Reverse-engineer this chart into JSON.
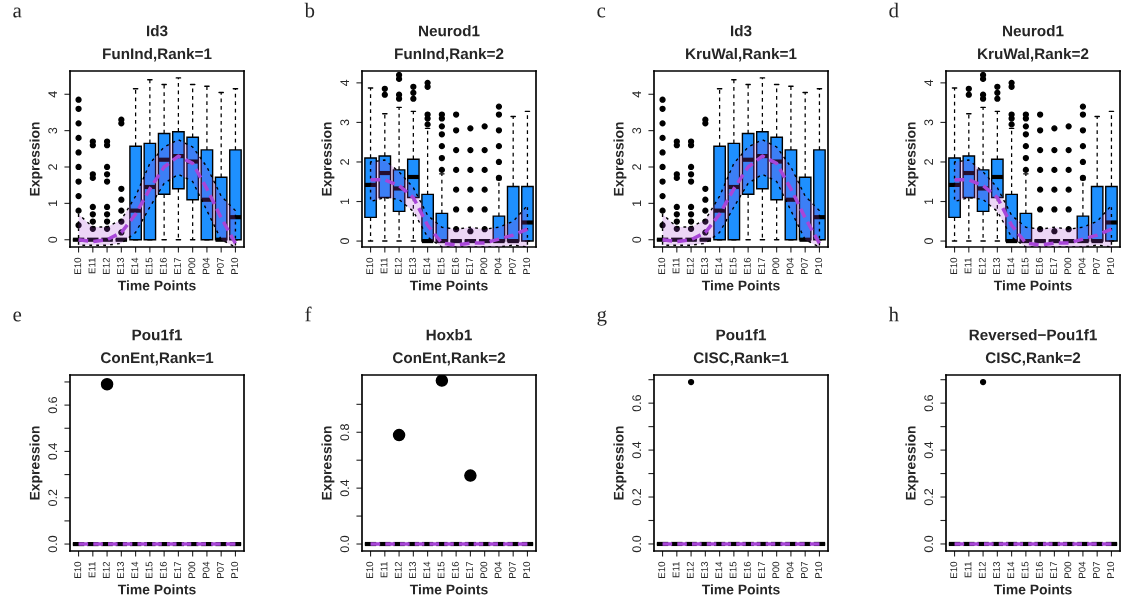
{
  "chart_data": [
    {
      "type": "box",
      "title": "Id3",
      "subtitle": "FunInd,Rank=1",
      "xlabel": "Time Points",
      "ylabel": "Expression",
      "annotations": [
        "a"
      ],
      "categories": [
        "E10",
        "E11",
        "E12",
        "E13",
        "E14",
        "E15",
        "E16",
        "E17",
        "P00",
        "P04",
        "P07",
        "P10"
      ],
      "ylim": [
        -0.2,
        4.64
      ],
      "yticks": [
        0,
        1,
        2,
        3,
        4
      ],
      "series": [
        {
          "type": "box",
          "colors": [
            "#000000",
            "#000000",
            "#000000",
            "#000000",
            "#1e90ff",
            "#1e90ff",
            "#1e90ff",
            "#1e90ff",
            "#1e90ff",
            "#1e90ff",
            "#1e90ff",
            "#1e90ff"
          ],
          "boxes": [
            {
              "low": 0,
              "q1": 0,
              "median": 0,
              "q3": 0,
              "high": 0,
              "outliers": [
                0.4,
                0.8,
                1.2,
                1.6,
                2.0,
                2.4,
                2.8,
                3.2,
                3.6,
                3.85
              ]
            },
            {
              "low": 0,
              "q1": 0,
              "median": 0,
              "q3": 0,
              "high": 0,
              "outliers": [
                0.3,
                0.5,
                0.7,
                0.9,
                1.7,
                1.8,
                2.6,
                2.7
              ]
            },
            {
              "low": 0,
              "q1": 0,
              "median": 0,
              "q3": 0,
              "high": 0,
              "outliers": [
                0.3,
                0.5,
                0.7,
                0.9,
                1.6,
                1.8,
                2.0,
                2.6,
                2.7
              ]
            },
            {
              "low": 0,
              "q1": 0,
              "median": 0,
              "q3": 0,
              "high": 0,
              "outliers": [
                0.2,
                0.5,
                0.8,
                1.1,
                1.4,
                3.2,
                3.3
              ]
            },
            {
              "low": 0,
              "q1": 0,
              "median": 0.8,
              "q3": 2.57,
              "high": 4.15
            },
            {
              "low": 0,
              "q1": 0,
              "median": 1.45,
              "q3": 2.65,
              "high": 4.4
            },
            {
              "low": 0,
              "q1": 1.25,
              "median": 2.2,
              "q3": 2.92,
              "high": 4.27
            },
            {
              "low": 0,
              "q1": 1.4,
              "median": 2.3,
              "q3": 2.97,
              "high": 4.45
            },
            {
              "low": 0,
              "q1": 1.1,
              "median": 2.15,
              "q3": 2.82,
              "high": 4.27
            },
            {
              "low": 0,
              "q1": 0,
              "median": 1.1,
              "q3": 2.47,
              "high": 4.22
            },
            {
              "low": 0,
              "q1": 0,
              "median": 0,
              "q3": 1.72,
              "high": 4.05
            },
            {
              "low": 0,
              "q1": 0,
              "median": 0.62,
              "q3": 2.47,
              "high": 4.15
            }
          ]
        },
        {
          "type": "line",
          "color": "#a846d8",
          "line_style": "dashed",
          "values": [
            0.0,
            -0.05,
            0.0,
            0.2,
            0.7,
            1.4,
            2.0,
            2.3,
            2.1,
            1.4,
            0.6,
            -0.1
          ],
          "lower": [
            -0.15,
            -0.15,
            -0.15,
            -0.1,
            0.2,
            0.9,
            1.55,
            1.8,
            1.6,
            0.8,
            0.0,
            -0.2
          ],
          "upper": [
            0.7,
            0.35,
            0.35,
            0.55,
            1.2,
            2.1,
            2.55,
            2.75,
            2.55,
            2.0,
            1.2,
            0.8
          ]
        }
      ]
    },
    {
      "type": "box",
      "title": "Neurod1",
      "subtitle": "FunInd,Rank=2",
      "xlabel": "Time Points",
      "ylabel": "Expression",
      "annotations": [
        "b"
      ],
      "categories": [
        "E10",
        "E11",
        "E12",
        "E13",
        "E14",
        "E15",
        "E16",
        "E17",
        "P00",
        "P04",
        "P07",
        "P10"
      ],
      "ylim": [
        -0.15,
        4.3
      ],
      "yticks": [
        0,
        1,
        2,
        3,
        4
      ],
      "series": [
        {
          "type": "box",
          "colors": [
            "#1e90ff",
            "#1e90ff",
            "#1e90ff",
            "#1e90ff",
            "#1e90ff",
            "#1e90ff",
            "#000000",
            "#000000",
            "#000000",
            "#1e90ff",
            "#1e90ff",
            "#1e90ff"
          ],
          "boxes": [
            {
              "low": 0,
              "q1": 0.6,
              "median": 1.42,
              "q3": 2.1,
              "high": 3.87
            },
            {
              "low": 0,
              "q1": 1.1,
              "median": 1.72,
              "q3": 2.15,
              "high": 3.22,
              "outliers": [
                3.7,
                3.85
              ]
            },
            {
              "low": 0,
              "q1": 0.75,
              "median": 1.33,
              "q3": 1.8,
              "high": 3.38,
              "outliers": [
                3.6,
                3.7,
                4.1,
                4.2
              ]
            },
            {
              "low": 0,
              "q1": 1.1,
              "median": 1.62,
              "q3": 2.07,
              "high": 3.28,
              "outliers": [
                3.6,
                3.75,
                3.9
              ]
            },
            {
              "low": 0,
              "q1": 0,
              "median": 0,
              "q3": 1.18,
              "high": 2.85,
              "outliers": [
                2.95,
                3.1,
                3.2,
                3.9,
                4.0
              ]
            },
            {
              "low": 0,
              "q1": 0,
              "median": 0,
              "q3": 0.7,
              "high": 1.7,
              "outliers": [
                1.8,
                2.1,
                2.4,
                2.7,
                2.9,
                3.1,
                3.2
              ]
            },
            {
              "low": 0,
              "q1": 0,
              "median": 0,
              "q3": 0,
              "high": 0,
              "outliers": [
                0.3,
                0.8,
                1.3,
                1.8,
                2.3,
                2.8,
                3.2
              ]
            },
            {
              "low": 0,
              "q1": 0,
              "median": 0,
              "q3": 0,
              "high": 0,
              "outliers": [
                0.25,
                0.8,
                1.3,
                1.8,
                2.3,
                2.85
              ]
            },
            {
              "low": 0,
              "q1": 0,
              "median": 0,
              "q3": 0,
              "high": 0,
              "outliers": [
                0.3,
                0.8,
                1.3,
                1.8,
                2.3,
                2.9
              ]
            },
            {
              "low": 0,
              "q1": 0,
              "median": 0,
              "q3": 0.63,
              "high": 1.55,
              "outliers": [
                1.6,
                2.0,
                2.4,
                2.8,
                3.2,
                3.4
              ]
            },
            {
              "low": 0,
              "q1": 0,
              "median": 0,
              "q3": 1.38,
              "high": 3.15
            },
            {
              "low": 0,
              "q1": 0,
              "median": 0.47,
              "q3": 1.38,
              "high": 3.28
            }
          ]
        },
        {
          "type": "line",
          "color": "#a846d8",
          "line_style": "dashed",
          "values": [
            1.55,
            1.55,
            1.4,
            1.1,
            0.4,
            -0.05,
            -0.1,
            -0.05,
            -0.05,
            0.05,
            0.15,
            0.3
          ],
          "lower": [
            1.0,
            1.1,
            1.05,
            0.75,
            0.1,
            -0.15,
            -0.15,
            -0.15,
            -0.15,
            -0.15,
            -0.1,
            -0.15
          ],
          "upper": [
            2.0,
            2.05,
            1.75,
            1.35,
            0.65,
            0.35,
            0.3,
            0.35,
            0.3,
            0.35,
            0.5,
            0.9
          ]
        }
      ]
    },
    {
      "type": "box",
      "title": "Id3",
      "subtitle": "KruWal,Rank=1",
      "xlabel": "Time Points",
      "ylabel": "Expression",
      "annotations": [
        "c"
      ],
      "categories": [
        "E10",
        "E11",
        "E12",
        "E13",
        "E14",
        "E15",
        "E16",
        "E17",
        "P00",
        "P04",
        "P07",
        "P10"
      ],
      "ylim": [
        -0.2,
        4.64
      ],
      "yticks": [
        0,
        1,
        2,
        3,
        4
      ],
      "series": [
        {
          "type": "box",
          "colors": [
            "#000000",
            "#000000",
            "#000000",
            "#000000",
            "#1e90ff",
            "#1e90ff",
            "#1e90ff",
            "#1e90ff",
            "#1e90ff",
            "#1e90ff",
            "#1e90ff",
            "#1e90ff"
          ],
          "boxes": [
            {
              "low": 0,
              "q1": 0,
              "median": 0,
              "q3": 0,
              "high": 0,
              "outliers": [
                0.4,
                0.8,
                1.2,
                1.6,
                2.0,
                2.4,
                2.8,
                3.2,
                3.6,
                3.85
              ]
            },
            {
              "low": 0,
              "q1": 0,
              "median": 0,
              "q3": 0,
              "high": 0,
              "outliers": [
                0.3,
                0.5,
                0.7,
                0.9,
                1.7,
                1.8,
                2.6,
                2.7
              ]
            },
            {
              "low": 0,
              "q1": 0,
              "median": 0,
              "q3": 0,
              "high": 0,
              "outliers": [
                0.3,
                0.5,
                0.7,
                0.9,
                1.6,
                1.8,
                2.0,
                2.6,
                2.7
              ]
            },
            {
              "low": 0,
              "q1": 0,
              "median": 0,
              "q3": 0,
              "high": 0,
              "outliers": [
                0.2,
                0.5,
                0.8,
                1.1,
                1.4,
                3.2,
                3.3
              ]
            },
            {
              "low": 0,
              "q1": 0,
              "median": 0.8,
              "q3": 2.57,
              "high": 4.15
            },
            {
              "low": 0,
              "q1": 0,
              "median": 1.45,
              "q3": 2.65,
              "high": 4.4
            },
            {
              "low": 0,
              "q1": 1.25,
              "median": 2.2,
              "q3": 2.92,
              "high": 4.27
            },
            {
              "low": 0,
              "q1": 1.4,
              "median": 2.3,
              "q3": 2.97,
              "high": 4.45
            },
            {
              "low": 0,
              "q1": 1.1,
              "median": 2.15,
              "q3": 2.82,
              "high": 4.27
            },
            {
              "low": 0,
              "q1": 0,
              "median": 1.1,
              "q3": 2.47,
              "high": 4.22
            },
            {
              "low": 0,
              "q1": 0,
              "median": 0,
              "q3": 1.72,
              "high": 4.05
            },
            {
              "low": 0,
              "q1": 0,
              "median": 0.62,
              "q3": 2.47,
              "high": 4.15
            }
          ]
        },
        {
          "type": "line",
          "color": "#a846d8",
          "line_style": "dashed",
          "values": [
            0.0,
            -0.05,
            0.0,
            0.2,
            0.7,
            1.4,
            2.0,
            2.3,
            2.1,
            1.4,
            0.6,
            -0.1
          ],
          "lower": [
            -0.15,
            -0.15,
            -0.15,
            -0.1,
            0.2,
            0.9,
            1.55,
            1.8,
            1.6,
            0.8,
            0.0,
            -0.2
          ],
          "upper": [
            0.7,
            0.35,
            0.35,
            0.55,
            1.2,
            2.1,
            2.55,
            2.75,
            2.55,
            2.0,
            1.2,
            0.8
          ]
        }
      ]
    },
    {
      "type": "box",
      "title": "Neurod1",
      "subtitle": "KruWal,Rank=2",
      "xlabel": "Time Points",
      "ylabel": "Expression",
      "annotations": [
        "d"
      ],
      "categories": [
        "E10",
        "E11",
        "E12",
        "E13",
        "E14",
        "E15",
        "E16",
        "E17",
        "P00",
        "P04",
        "P07",
        "P10"
      ],
      "ylim": [
        -0.15,
        4.3
      ],
      "yticks": [
        0,
        1,
        2,
        3,
        4
      ],
      "series": [
        {
          "type": "box",
          "colors": [
            "#1e90ff",
            "#1e90ff",
            "#1e90ff",
            "#1e90ff",
            "#1e90ff",
            "#1e90ff",
            "#000000",
            "#000000",
            "#000000",
            "#1e90ff",
            "#1e90ff",
            "#1e90ff"
          ],
          "boxes": [
            {
              "low": 0,
              "q1": 0.6,
              "median": 1.42,
              "q3": 2.1,
              "high": 3.87
            },
            {
              "low": 0,
              "q1": 1.1,
              "median": 1.72,
              "q3": 2.15,
              "high": 3.22,
              "outliers": [
                3.7,
                3.85
              ]
            },
            {
              "low": 0,
              "q1": 0.75,
              "median": 1.33,
              "q3": 1.8,
              "high": 3.38,
              "outliers": [
                3.6,
                3.7,
                4.1,
                4.2
              ]
            },
            {
              "low": 0,
              "q1": 1.1,
              "median": 1.62,
              "q3": 2.07,
              "high": 3.28,
              "outliers": [
                3.6,
                3.75,
                3.9
              ]
            },
            {
              "low": 0,
              "q1": 0,
              "median": 0,
              "q3": 1.18,
              "high": 2.85,
              "outliers": [
                2.95,
                3.1,
                3.2,
                3.9,
                4.0
              ]
            },
            {
              "low": 0,
              "q1": 0,
              "median": 0,
              "q3": 0.7,
              "high": 1.7,
              "outliers": [
                1.8,
                2.1,
                2.4,
                2.7,
                2.9,
                3.1,
                3.2
              ]
            },
            {
              "low": 0,
              "q1": 0,
              "median": 0,
              "q3": 0,
              "high": 0,
              "outliers": [
                0.3,
                0.8,
                1.3,
                1.8,
                2.3,
                2.8,
                3.2
              ]
            },
            {
              "low": 0,
              "q1": 0,
              "median": 0,
              "q3": 0,
              "high": 0,
              "outliers": [
                0.25,
                0.8,
                1.3,
                1.8,
                2.3,
                2.85
              ]
            },
            {
              "low": 0,
              "q1": 0,
              "median": 0,
              "q3": 0,
              "high": 0,
              "outliers": [
                0.3,
                0.8,
                1.3,
                1.8,
                2.3,
                2.9
              ]
            },
            {
              "low": 0,
              "q1": 0,
              "median": 0,
              "q3": 0.63,
              "high": 1.55,
              "outliers": [
                1.6,
                2.0,
                2.4,
                2.8,
                3.2,
                3.4
              ]
            },
            {
              "low": 0,
              "q1": 0,
              "median": 0,
              "q3": 1.38,
              "high": 3.15
            },
            {
              "low": 0,
              "q1": 0,
              "median": 0.47,
              "q3": 1.38,
              "high": 3.28
            }
          ]
        },
        {
          "type": "line",
          "color": "#a846d8",
          "line_style": "dashed",
          "values": [
            1.55,
            1.55,
            1.4,
            1.1,
            0.4,
            -0.05,
            -0.1,
            -0.05,
            -0.05,
            0.05,
            0.15,
            0.3
          ],
          "lower": [
            1.0,
            1.1,
            1.05,
            0.75,
            0.1,
            -0.15,
            -0.15,
            -0.15,
            -0.15,
            -0.15,
            -0.1,
            -0.15
          ],
          "upper": [
            2.0,
            2.05,
            1.75,
            1.35,
            0.65,
            0.35,
            0.3,
            0.35,
            0.3,
            0.35,
            0.5,
            0.9
          ]
        }
      ]
    },
    {
      "type": "box",
      "title": "Pou1f1",
      "subtitle": "ConEnt,Rank=1",
      "xlabel": "Time Points",
      "ylabel": "Expression",
      "annotations": [
        "e"
      ],
      "categories": [
        "E10",
        "E11",
        "E12",
        "E13",
        "E14",
        "E15",
        "E16",
        "E17",
        "P00",
        "P04",
        "P07",
        "P10"
      ],
      "ylim": [
        -0.03,
        0.73
      ],
      "yticks": [
        {
          "value": 0,
          "label": "0.0"
        },
        {
          "value": 0.1,
          "label": null
        },
        {
          "value": 0.2,
          "label": "0.2"
        },
        {
          "value": 0.3,
          "label": null
        },
        {
          "value": 0.4,
          "label": "0.4"
        },
        {
          "value": 0.5,
          "label": null
        },
        {
          "value": 0.6,
          "label": "0.6"
        },
        {
          "value": 0.7,
          "label": null
        }
      ],
      "series": [
        {
          "type": "box",
          "color": "#000000",
          "marker": "circle",
          "boxes": [
            {
              "low": 0,
              "q1": 0,
              "median": 0,
              "q3": 0,
              "high": 0
            },
            {
              "low": 0,
              "q1": 0,
              "median": 0,
              "q3": 0,
              "high": 0
            },
            {
              "low": 0,
              "q1": 0,
              "median": 0,
              "q3": 0,
              "high": 0,
              "outliers": [
                0.69
              ]
            },
            {
              "low": 0,
              "q1": 0,
              "median": 0,
              "q3": 0,
              "high": 0
            },
            {
              "low": 0,
              "q1": 0,
              "median": 0,
              "q3": 0,
              "high": 0
            },
            {
              "low": 0,
              "q1": 0,
              "median": 0,
              "q3": 0,
              "high": 0
            },
            {
              "low": 0,
              "q1": 0,
              "median": 0,
              "q3": 0,
              "high": 0
            },
            {
              "low": 0,
              "q1": 0,
              "median": 0,
              "q3": 0,
              "high": 0
            },
            {
              "low": 0,
              "q1": 0,
              "median": 0,
              "q3": 0,
              "high": 0
            },
            {
              "low": 0,
              "q1": 0,
              "median": 0,
              "q3": 0,
              "high": 0
            },
            {
              "low": 0,
              "q1": 0,
              "median": 0,
              "q3": 0,
              "high": 0
            },
            {
              "low": 0,
              "q1": 0,
              "median": 0,
              "q3": 0,
              "high": 0
            }
          ]
        },
        {
          "type": "line",
          "color": "#a846d8",
          "line_style": "dashed",
          "values": [
            0,
            0,
            0,
            0,
            0,
            0,
            0,
            0,
            0,
            0,
            0,
            0
          ]
        }
      ]
    },
    {
      "type": "box",
      "title": "Hoxb1",
      "subtitle": "ConEnt,Rank=2",
      "xlabel": "Time Points",
      "ylabel": "Expression",
      "annotations": [
        "f"
      ],
      "categories": [
        "E10",
        "E11",
        "E12",
        "E13",
        "E14",
        "E15",
        "E16",
        "E17",
        "P00",
        "P04",
        "P07",
        "P10"
      ],
      "ylim": [
        -0.05,
        1.21
      ],
      "yticks": [
        {
          "value": 0,
          "label": "0.0"
        },
        {
          "value": 0.2,
          "label": null
        },
        {
          "value": 0.4,
          "label": "0.4"
        },
        {
          "value": 0.6,
          "label": null
        },
        {
          "value": 0.8,
          "label": "0.8"
        },
        {
          "value": 1.0,
          "label": null
        }
      ],
      "series": [
        {
          "type": "box",
          "color": "#000000",
          "marker": "circle",
          "boxes": [
            {
              "low": 0,
              "q1": 0,
              "median": 0,
              "q3": 0,
              "high": 0
            },
            {
              "low": 0,
              "q1": 0,
              "median": 0,
              "q3": 0,
              "high": 0
            },
            {
              "low": 0,
              "q1": 0,
              "median": 0,
              "q3": 0,
              "high": 0,
              "outliers": [
                0.78
              ]
            },
            {
              "low": 0,
              "q1": 0,
              "median": 0,
              "q3": 0,
              "high": 0
            },
            {
              "low": 0,
              "q1": 0,
              "median": 0,
              "q3": 0,
              "high": 0
            },
            {
              "low": 0,
              "q1": 0,
              "median": 0,
              "q3": 0,
              "high": 0,
              "outliers": [
                1.17
              ]
            },
            {
              "low": 0,
              "q1": 0,
              "median": 0,
              "q3": 0,
              "high": 0
            },
            {
              "low": 0,
              "q1": 0,
              "median": 0,
              "q3": 0,
              "high": 0,
              "outliers": [
                0.49
              ]
            },
            {
              "low": 0,
              "q1": 0,
              "median": 0,
              "q3": 0,
              "high": 0
            },
            {
              "low": 0,
              "q1": 0,
              "median": 0,
              "q3": 0,
              "high": 0
            },
            {
              "low": 0,
              "q1": 0,
              "median": 0,
              "q3": 0,
              "high": 0
            },
            {
              "low": 0,
              "q1": 0,
              "median": 0,
              "q3": 0,
              "high": 0
            }
          ]
        },
        {
          "type": "line",
          "color": "#a846d8",
          "line_style": "dashed",
          "values": [
            0,
            0,
            0,
            0,
            0,
            0,
            0,
            0,
            0,
            0,
            0,
            0
          ]
        }
      ]
    },
    {
      "type": "box",
      "title": "Pou1f1",
      "subtitle": "CISC,Rank=1",
      "xlabel": "Time Points",
      "ylabel": "Expression",
      "annotations": [
        "g"
      ],
      "categories": [
        "E10",
        "E11",
        "E12",
        "E13",
        "E14",
        "E15",
        "E16",
        "E17",
        "P00",
        "P04",
        "P07",
        "P10"
      ],
      "ylim": [
        -0.03,
        0.72
      ],
      "yticks": [
        {
          "value": 0,
          "label": "0.0"
        },
        {
          "value": 0.1,
          "label": null
        },
        {
          "value": 0.2,
          "label": "0.2"
        },
        {
          "value": 0.3,
          "label": null
        },
        {
          "value": 0.4,
          "label": "0.4"
        },
        {
          "value": 0.5,
          "label": null
        },
        {
          "value": 0.6,
          "label": "0.6"
        },
        {
          "value": 0.7,
          "label": null
        }
      ],
      "series": [
        {
          "type": "box",
          "color": "#000000",
          "boxes": [
            {
              "low": 0,
              "q1": 0,
              "median": 0,
              "q3": 0,
              "high": 0
            },
            {
              "low": 0,
              "q1": 0,
              "median": 0,
              "q3": 0,
              "high": 0
            },
            {
              "low": 0,
              "q1": 0,
              "median": 0,
              "q3": 0,
              "high": 0,
              "outliers": [
                0.69
              ]
            },
            {
              "low": 0,
              "q1": 0,
              "median": 0,
              "q3": 0,
              "high": 0
            },
            {
              "low": 0,
              "q1": 0,
              "median": 0,
              "q3": 0,
              "high": 0
            },
            {
              "low": 0,
              "q1": 0,
              "median": 0,
              "q3": 0,
              "high": 0
            },
            {
              "low": 0,
              "q1": 0,
              "median": 0,
              "q3": 0,
              "high": 0
            },
            {
              "low": 0,
              "q1": 0,
              "median": 0,
              "q3": 0,
              "high": 0
            },
            {
              "low": 0,
              "q1": 0,
              "median": 0,
              "q3": 0,
              "high": 0
            },
            {
              "low": 0,
              "q1": 0,
              "median": 0,
              "q3": 0,
              "high": 0
            },
            {
              "low": 0,
              "q1": 0,
              "median": 0,
              "q3": 0,
              "high": 0
            },
            {
              "low": 0,
              "q1": 0,
              "median": 0,
              "q3": 0,
              "high": 0
            }
          ]
        },
        {
          "type": "line",
          "color": "#a846d8",
          "line_style": "dashed",
          "values": [
            0,
            0,
            0,
            0,
            0,
            0,
            0,
            0,
            0,
            0,
            0,
            0
          ]
        }
      ]
    },
    {
      "type": "box",
      "title": "Reversed−Pou1f1",
      "subtitle": "CISC,Rank=2",
      "xlabel": "Time Points",
      "ylabel": "Expression",
      "annotations": [
        "h"
      ],
      "categories": [
        "E10",
        "E11",
        "E12",
        "E13",
        "E14",
        "E15",
        "E16",
        "E17",
        "P00",
        "P04",
        "P07",
        "P10"
      ],
      "ylim": [
        -0.03,
        0.72
      ],
      "yticks": [
        {
          "value": 0,
          "label": "0.0"
        },
        {
          "value": 0.1,
          "label": null
        },
        {
          "value": 0.2,
          "label": "0.2"
        },
        {
          "value": 0.3,
          "label": null
        },
        {
          "value": 0.4,
          "label": "0.4"
        },
        {
          "value": 0.5,
          "label": null
        },
        {
          "value": 0.6,
          "label": "0.6"
        },
        {
          "value": 0.7,
          "label": null
        }
      ],
      "series": [
        {
          "type": "box",
          "color": "#000000",
          "boxes": [
            {
              "low": 0,
              "q1": 0,
              "median": 0,
              "q3": 0,
              "high": 0
            },
            {
              "low": 0,
              "q1": 0,
              "median": 0,
              "q3": 0,
              "high": 0
            },
            {
              "low": 0,
              "q1": 0,
              "median": 0,
              "q3": 0,
              "high": 0,
              "outliers": [
                0.69
              ]
            },
            {
              "low": 0,
              "q1": 0,
              "median": 0,
              "q3": 0,
              "high": 0
            },
            {
              "low": 0,
              "q1": 0,
              "median": 0,
              "q3": 0,
              "high": 0
            },
            {
              "low": 0,
              "q1": 0,
              "median": 0,
              "q3": 0,
              "high": 0
            },
            {
              "low": 0,
              "q1": 0,
              "median": 0,
              "q3": 0,
              "high": 0
            },
            {
              "low": 0,
              "q1": 0,
              "median": 0,
              "q3": 0,
              "high": 0
            },
            {
              "low": 0,
              "q1": 0,
              "median": 0,
              "q3": 0,
              "high": 0
            },
            {
              "low": 0,
              "q1": 0,
              "median": 0,
              "q3": 0,
              "high": 0
            },
            {
              "low": 0,
              "q1": 0,
              "median": 0,
              "q3": 0,
              "high": 0
            },
            {
              "low": 0,
              "q1": 0,
              "median": 0,
              "q3": 0,
              "high": 0
            }
          ]
        },
        {
          "type": "line",
          "color": "#a846d8",
          "line_style": "dashed",
          "values": [
            0,
            0,
            0,
            0,
            0,
            0,
            0,
            0,
            0,
            0,
            0,
            0
          ]
        }
      ]
    }
  ]
}
